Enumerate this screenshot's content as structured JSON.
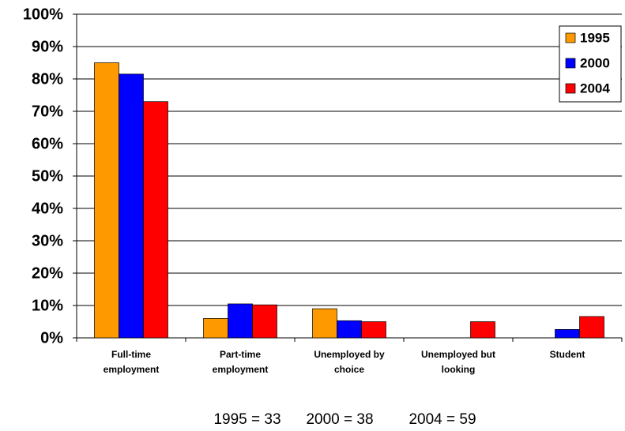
{
  "chart_data": {
    "type": "bar",
    "categories": [
      "Full-time employment",
      "Part-time employment",
      "Unemployed by choice",
      "Unemployed but looking",
      "Student"
    ],
    "series": [
      {
        "name": "1995",
        "color": "#ff9900",
        "values": [
          85,
          6,
          9,
          0,
          0
        ]
      },
      {
        "name": "2000",
        "color": "#0000ff",
        "values": [
          81.5,
          10.5,
          5.3,
          0,
          2.6
        ]
      },
      {
        "name": "2004",
        "color": "#ff0000",
        "values": [
          73,
          10.2,
          5,
          5,
          6.6
        ]
      }
    ],
    "ylim": [
      0,
      100
    ],
    "yticks": [
      {
        "value": 0,
        "label": "0%"
      },
      {
        "value": 10,
        "label": "10%"
      },
      {
        "value": 20,
        "label": "20%"
      },
      {
        "value": 30,
        "label": "30%"
      },
      {
        "value": 40,
        "label": "40%"
      },
      {
        "value": 50,
        "label": "50%"
      },
      {
        "value": 60,
        "label": "60%"
      },
      {
        "value": 70,
        "label": "70%"
      },
      {
        "value": 80,
        "label": "80%"
      },
      {
        "value": 90,
        "label": "90%"
      },
      {
        "value": 100,
        "label": "100%"
      }
    ],
    "grid": true,
    "legend": "top-right",
    "annotations": [
      "1995 = 33",
      "2000 = 38",
      "2004 = 59"
    ]
  }
}
